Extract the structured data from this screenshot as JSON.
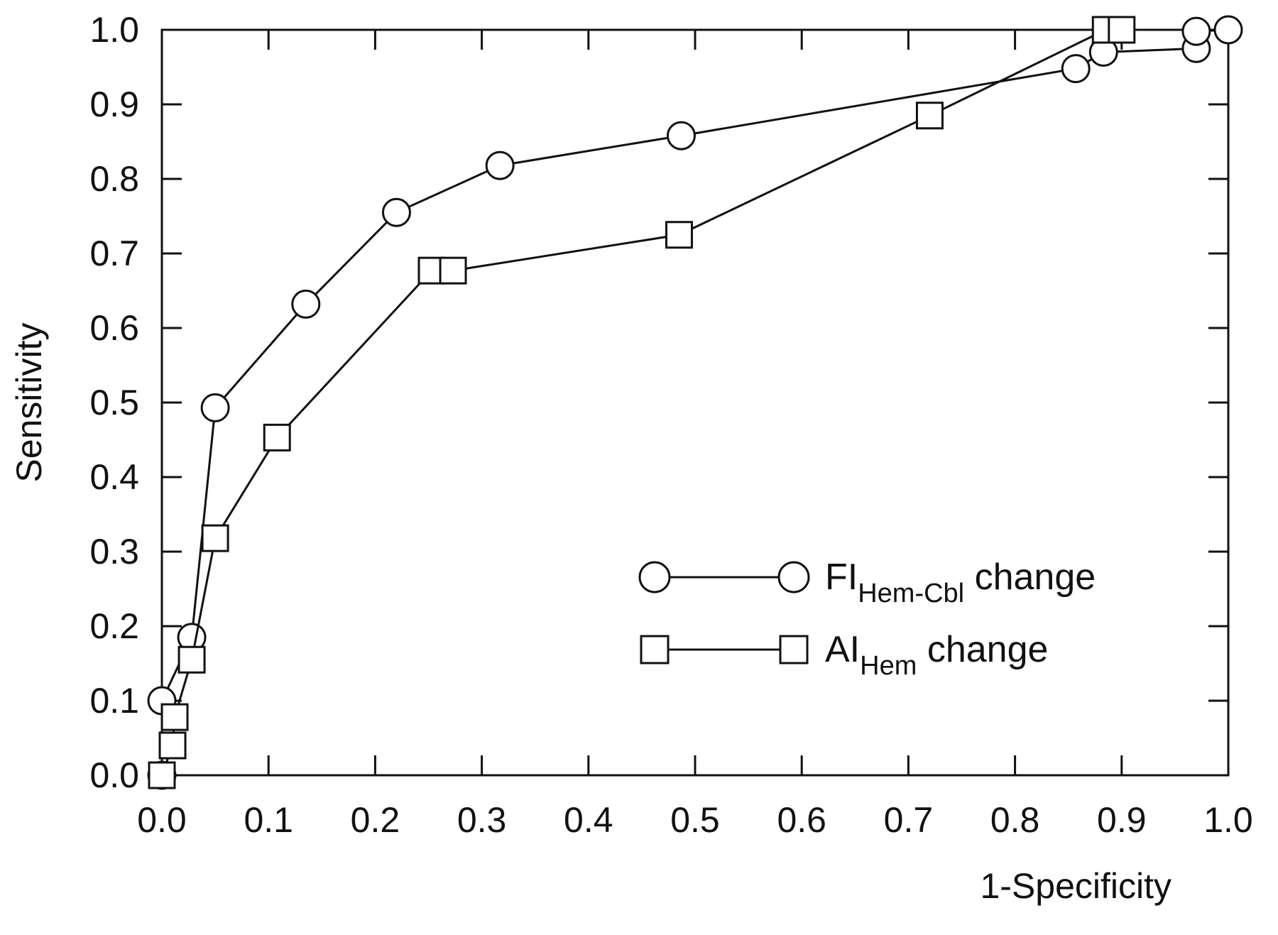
{
  "chart_data": {
    "type": "line",
    "xlabel": "1-Specificity",
    "ylabel": "Sensitivity",
    "xlim": [
      0.0,
      1.0
    ],
    "ylim": [
      0.0,
      1.0
    ],
    "xticks": [
      "0.0",
      "0.1",
      "0.2",
      "0.3",
      "0.4",
      "0.5",
      "0.6",
      "0.7",
      "0.8",
      "0.9",
      "1.0"
    ],
    "yticks": [
      "0.0",
      "0.1",
      "0.2",
      "0.3",
      "0.4",
      "0.5",
      "0.6",
      "0.7",
      "0.8",
      "0.9",
      "1.0"
    ],
    "grid": false,
    "legend_position": "lower-right",
    "series": [
      {
        "name": "FI",
        "name_subscript": "Hem-Cbl",
        "name_suffix": " change",
        "marker": "circle",
        "points": [
          [
            0.0,
            0.0
          ],
          [
            0.0,
            0.1
          ],
          [
            0.028,
            0.185
          ],
          [
            0.05,
            0.493
          ],
          [
            0.135,
            0.632
          ],
          [
            0.22,
            0.755
          ],
          [
            0.317,
            0.818
          ],
          [
            0.487,
            0.858
          ],
          [
            0.857,
            0.948
          ],
          [
            0.883,
            0.97
          ],
          [
            0.97,
            0.975
          ],
          [
            0.97,
            0.998
          ],
          [
            1.0,
            1.0
          ]
        ]
      },
      {
        "name": "AI",
        "name_subscript": "Hem",
        "name_suffix": " change",
        "marker": "square",
        "points": [
          [
            0.0,
            0.0
          ],
          [
            0.01,
            0.04
          ],
          [
            0.012,
            0.078
          ],
          [
            0.028,
            0.155
          ],
          [
            0.05,
            0.318
          ],
          [
            0.108,
            0.453
          ],
          [
            0.253,
            0.677
          ],
          [
            0.273,
            0.677
          ],
          [
            0.485,
            0.725
          ],
          [
            0.72,
            0.885
          ],
          [
            0.885,
            1.0
          ],
          [
            0.9,
            1.0
          ]
        ]
      }
    ]
  }
}
